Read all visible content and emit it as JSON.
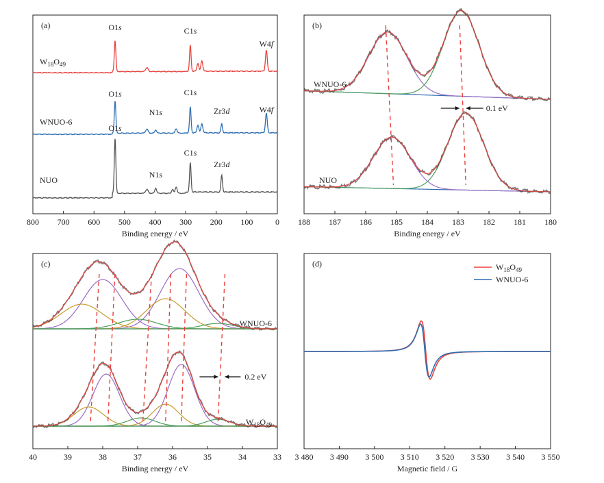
{
  "colors": {
    "red": "#e8413c",
    "blue": "#2f6fb3",
    "gray": "#555555",
    "purple": "#9a6dc4",
    "green": "#4a9e5c",
    "gold": "#c99a2e",
    "dashed": "#e8413c",
    "axis": "#222222"
  },
  "chart_data": [
    {
      "panel": "(a)",
      "type": "line",
      "xlabel": "Binding energy / eV",
      "ylabel": "",
      "xlim": [
        800,
        0
      ],
      "x_reversed": true,
      "x_ticks": [
        800,
        700,
        600,
        500,
        400,
        300,
        200,
        100,
        0
      ],
      "grid": false,
      "series": [
        {
          "name": "W18O49",
          "label_main": "W",
          "label_sub1": "18",
          "label_mid": "O",
          "label_sub2": "49",
          "color": "red",
          "baseline": 0.88,
          "slope": 0.05,
          "peaks": [
            {
              "x": 531,
              "h": 0.48,
              "w": 2.5
            },
            {
              "x": 284.8,
              "h": 0.4,
              "w": 2.5
            },
            {
              "x": 260,
              "h": 0.12,
              "w": 3
            },
            {
              "x": 247,
              "h": 0.16,
              "w": 3
            },
            {
              "x": 427,
              "h": 0.06,
              "w": 4
            },
            {
              "x": 36,
              "h": 0.32,
              "w": 3
            }
          ]
        },
        {
          "name": "WNUO-6",
          "color": "blue",
          "baseline": 0.4,
          "slope": 0.05,
          "peaks": [
            {
              "x": 531,
              "h": 0.5,
              "w": 2.5
            },
            {
              "x": 398,
              "h": 0.05,
              "w": 3
            },
            {
              "x": 427,
              "h": 0.06,
              "w": 4
            },
            {
              "x": 284.8,
              "h": 0.4,
              "w": 2.5
            },
            {
              "x": 331,
              "h": 0.07,
              "w": 3
            },
            {
              "x": 260,
              "h": 0.12,
              "w": 3
            },
            {
              "x": 247,
              "h": 0.14,
              "w": 3
            },
            {
              "x": 182,
              "h": 0.14,
              "w": 2.5
            },
            {
              "x": 36,
              "h": 0.3,
              "w": 3
            }
          ]
        },
        {
          "name": "NUO",
          "color": "gray",
          "baseline": -0.08,
          "slope": 0.2,
          "peaks": [
            {
              "x": 531,
              "h": 0.85,
              "w": 2.5
            },
            {
              "x": 398,
              "h": 0.08,
              "w": 3
            },
            {
              "x": 427,
              "h": 0.06,
              "w": 4
            },
            {
              "x": 284.8,
              "h": 0.45,
              "w": 2.5
            },
            {
              "x": 331,
              "h": 0.1,
              "w": 3
            },
            {
              "x": 343,
              "h": 0.06,
              "w": 3
            },
            {
              "x": 182,
              "h": 0.26,
              "w": 2.5
            }
          ]
        }
      ],
      "annotations": [
        {
          "text": "O1",
          "italic": "s",
          "x": 531,
          "series": "W18O49"
        },
        {
          "text": "C1",
          "italic": "s",
          "x": 284.8,
          "series": "W18O49"
        },
        {
          "text": "W4",
          "italic": "f",
          "x": 36,
          "series": "W18O49"
        },
        {
          "text": "O1",
          "italic": "s",
          "x": 531,
          "series": "WNUO-6"
        },
        {
          "text": "N1",
          "italic": "s",
          "x": 398,
          "series": "WNUO-6"
        },
        {
          "text": "C1",
          "italic": "s",
          "x": 284.8,
          "series": "WNUO-6"
        },
        {
          "text": "Zr3",
          "italic": "d",
          "x": 182,
          "series": "WNUO-6"
        },
        {
          "text": "W4",
          "italic": "f",
          "x": 36,
          "series": "WNUO-6"
        },
        {
          "text": "O1",
          "italic": "s",
          "x": 531,
          "series": "NUO"
        },
        {
          "text": "N1",
          "italic": "s",
          "x": 398,
          "series": "NUO"
        },
        {
          "text": "C1",
          "italic": "s",
          "x": 284.8,
          "series": "NUO"
        },
        {
          "text": "Zr3",
          "italic": "d",
          "x": 182,
          "series": "NUO"
        }
      ]
    },
    {
      "panel": "(b)",
      "type": "line",
      "xlabel": "Binding energy / eV",
      "ylabel": "",
      "xlim": [
        188,
        180
      ],
      "x_reversed": true,
      "x_ticks": [
        188,
        187,
        186,
        185,
        184,
        183,
        182,
        181,
        180
      ],
      "grid": false,
      "samples": [
        {
          "name": "WNUO-6",
          "components": [
            {
              "center": 185.28,
              "amp": 0.36,
              "sigma": 0.62
            },
            {
              "center": 182.9,
              "amp": 0.5,
              "sigma": 0.58
            }
          ],
          "baseline": [
            0.05,
            0.0
          ]
        },
        {
          "name": "NUO",
          "components": [
            {
              "center": 185.15,
              "amp": 0.3,
              "sigma": 0.6
            },
            {
              "center": 182.75,
              "amp": 0.45,
              "sigma": 0.58
            }
          ],
          "baseline": [
            0.03,
            0.0
          ]
        }
      ],
      "shift_label": "0.1 eV",
      "dashed_lines": [
        {
          "x_top": 185.35,
          "x_bottom": 185.1
        },
        {
          "x_top": 182.95,
          "x_bottom": 182.75
        }
      ]
    },
    {
      "panel": "(c)",
      "type": "line",
      "xlabel": "Binding energy / eV",
      "ylabel": "",
      "xlim": [
        40,
        33
      ],
      "x_reversed": true,
      "x_ticks": [
        40,
        39,
        38,
        37,
        36,
        35,
        34,
        33
      ],
      "grid": false,
      "samples": [
        {
          "name": "WNUO-6",
          "components": [
            {
              "center": 38.0,
              "amp": 0.36,
              "sigma": 0.55,
              "color": "purple"
            },
            {
              "center": 35.8,
              "amp": 0.44,
              "sigma": 0.55,
              "color": "purple"
            },
            {
              "center": 38.6,
              "amp": 0.18,
              "sigma": 0.6,
              "color": "gold"
            },
            {
              "center": 36.2,
              "amp": 0.22,
              "sigma": 0.55,
              "color": "gold"
            },
            {
              "center": 37.0,
              "amp": 0.07,
              "sigma": 0.55,
              "color": "green"
            },
            {
              "center": 34.7,
              "amp": 0.04,
              "sigma": 0.45,
              "color": "green"
            }
          ]
        },
        {
          "name": "W18O49",
          "label_main": "W",
          "label_sub1": "18",
          "label_mid": "O",
          "label_sub2": "49",
          "components": [
            {
              "center": 37.9,
              "amp": 0.38,
              "sigma": 0.38,
              "color": "purple"
            },
            {
              "center": 35.75,
              "amp": 0.45,
              "sigma": 0.38,
              "color": "purple"
            },
            {
              "center": 38.4,
              "amp": 0.14,
              "sigma": 0.42,
              "color": "gold"
            },
            {
              "center": 36.2,
              "amp": 0.16,
              "sigma": 0.38,
              "color": "gold"
            },
            {
              "center": 36.9,
              "amp": 0.06,
              "sigma": 0.4,
              "color": "green"
            },
            {
              "center": 34.7,
              "amp": 0.05,
              "sigma": 0.35,
              "color": "green"
            }
          ]
        }
      ],
      "shift_label": "0.2 eV",
      "dashed_lines": [
        {
          "x_top": 38.1,
          "x_bottom": 38.35
        },
        {
          "x_top": 37.65,
          "x_bottom": 37.85
        },
        {
          "x_top": 36.6,
          "x_bottom": 36.85
        },
        {
          "x_top": 36.05,
          "x_bottom": 36.2
        },
        {
          "x_top": 35.6,
          "x_bottom": 35.75
        },
        {
          "x_top": 34.5,
          "x_bottom": 34.7
        }
      ]
    },
    {
      "panel": "(d)",
      "type": "line",
      "xlabel": "Magnetic field / G",
      "ylabel": "",
      "xlim": [
        3480,
        3550
      ],
      "x_reversed": false,
      "x_ticks": [
        3480,
        3490,
        3500,
        3510,
        3520,
        3530,
        3540,
        3550
      ],
      "x_tick_labels": [
        "3 480",
        "3 490",
        "3 500",
        "3 510",
        "3 520",
        "3 530",
        "3 540",
        "3 550"
      ],
      "grid": false,
      "legend_position": "top-right",
      "series": [
        {
          "name": "W18O49",
          "label_main": "W",
          "label_sub1": "18",
          "label_mid": "O",
          "label_sub2": "49",
          "color": "red",
          "peak_x": 3513.3,
          "trough_x": 3515.8,
          "peak_y": 0.86,
          "trough_y": -0.78
        },
        {
          "name": "WNUO-6",
          "color": "blue",
          "peak_x": 3513.1,
          "trough_x": 3515.5,
          "peak_y": 0.77,
          "trough_y": -0.72
        }
      ]
    }
  ]
}
